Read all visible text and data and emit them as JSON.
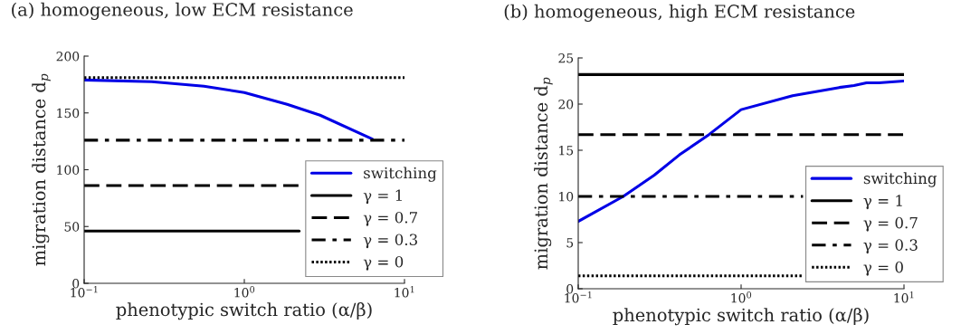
{
  "chart_data": [
    {
      "type": "line",
      "title": "(a) homogeneous, low ECM resistance",
      "xlabel": "phenotypic switch ratio (α/β)",
      "ylabel": "migration distance d$_{p}$",
      "log": "x",
      "xlim": [
        0.1,
        10
      ],
      "xticks": [
        {
          "value": 0.1,
          "label": "10$^{−1}$"
        },
        {
          "value": 1,
          "label": "10$^{0}$"
        },
        {
          "value": 10,
          "label": "10$^{1}$"
        }
      ],
      "ylim": [
        0,
        200
      ],
      "yticks": [
        0,
        50,
        100,
        150,
        200
      ],
      "grid": false,
      "legend": "bottom right",
      "series": [
        {
          "name": "switching",
          "color": "#0000e6",
          "line_style": "solid",
          "x": [
            0.1,
            0.264,
            0.56,
            1,
            1.85,
            2.97,
            6.3
          ],
          "values": [
            179,
            177.5,
            173.5,
            168,
            157.6,
            148,
            127
          ]
        },
        {
          "name": "γ = 1",
          "color": "#000000",
          "line_style": "solid",
          "x": [
            0.1,
            2.2
          ],
          "values": [
            46,
            46
          ]
        },
        {
          "name": "γ = 0.7",
          "color": "#000000",
          "line_style": "dashed",
          "x": [
            0.1,
            2.2
          ],
          "values": [
            86,
            86
          ]
        },
        {
          "name": "γ = 0.3",
          "color": "#000000",
          "line_style": "dashdot",
          "x": [
            0.1,
            10
          ],
          "values": [
            126,
            126
          ]
        },
        {
          "name": "γ = 0",
          "color": "#000000",
          "line_style": "dotted",
          "x": [
            0.1,
            10
          ],
          "values": [
            181,
            181
          ]
        }
      ]
    },
    {
      "type": "line",
      "title": "(b) homogeneous, high ECM resistance",
      "xlabel": "phenotypic switch ratio (α/β)",
      "ylabel": "migration distance d$_{p}$",
      "log": "x",
      "xlim": [
        0.1,
        10
      ],
      "xticks": [
        {
          "value": 0.1,
          "label": "10$^{−1}$"
        },
        {
          "value": 1,
          "label": "10$^{0}$"
        },
        {
          "value": 10,
          "label": "10$^{1}$"
        }
      ],
      "ylim": [
        0,
        25
      ],
      "yticks": [
        0,
        5,
        10,
        15,
        20,
        25
      ],
      "grid": false,
      "legend": "bottom right",
      "series": [
        {
          "name": "switching",
          "color": "#0000e6",
          "line_style": "solid",
          "x": [
            0.1,
            0.189,
            0.293,
            0.418,
            0.635,
            1,
            2.07,
            4.01,
            4.93,
            5.89,
            7.03,
            10
          ],
          "values": [
            7.3,
            10.0,
            12.3,
            14.5,
            16.7,
            19.4,
            20.9,
            21.8,
            22.0,
            22.3,
            22.3,
            22.5
          ]
        },
        {
          "name": "γ = 1",
          "color": "#000000",
          "line_style": "solid",
          "x": [
            0.1,
            10
          ],
          "values": [
            23.2,
            23.2
          ]
        },
        {
          "name": "γ = 0.7",
          "color": "#000000",
          "line_style": "dashed",
          "x": [
            0.1,
            10
          ],
          "values": [
            16.7,
            16.7
          ]
        },
        {
          "name": "γ = 0.3",
          "color": "#000000",
          "line_style": "dashdot",
          "x": [
            0.1,
            2.4
          ],
          "values": [
            10.0,
            10.0
          ]
        },
        {
          "name": "γ = 0",
          "color": "#000000",
          "line_style": "dotted",
          "x": [
            0.1,
            2.4
          ],
          "values": [
            1.4,
            1.4
          ]
        }
      ]
    }
  ]
}
